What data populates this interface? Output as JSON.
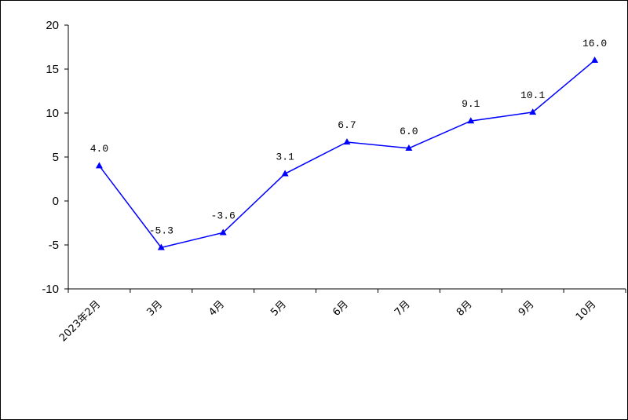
{
  "colors": {
    "series": "#0000ff",
    "axis": "#000000",
    "background": "#ffffff"
  },
  "chart_data": {
    "type": "line",
    "categories": [
      "2023年2月",
      "3月",
      "4月",
      "5月",
      "6月",
      "7月",
      "8月",
      "9月",
      "10月"
    ],
    "series": [
      {
        "values": [
          4.0,
          -5.3,
          -3.6,
          3.1,
          6.7,
          6.0,
          9.1,
          10.1,
          16.0
        ],
        "labels": [
          "4.0",
          "-5.3",
          "-3.6",
          "3.1",
          "6.7",
          "6.0",
          "9.1",
          "10.1",
          "16.0"
        ],
        "marker": "triangle"
      }
    ],
    "ylim": [
      -10,
      20
    ],
    "yticks": [
      -10,
      -5,
      0,
      5,
      10,
      15,
      20
    ],
    "ytick_labels": [
      "-10",
      "-5",
      "0",
      "5",
      "10",
      "15",
      "20"
    ],
    "title": "",
    "xlabel": "",
    "ylabel": "",
    "grid": false,
    "legend": "none"
  }
}
